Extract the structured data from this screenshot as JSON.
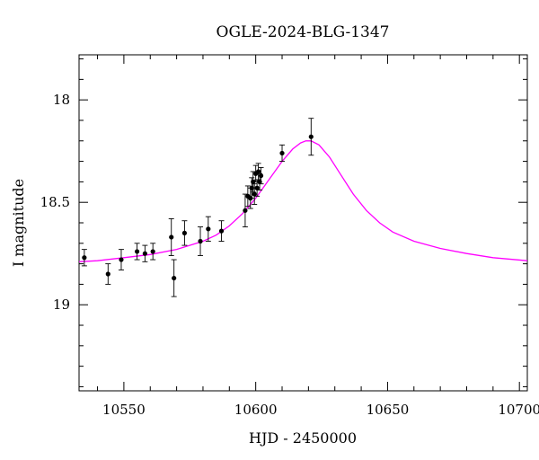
{
  "chart_data": {
    "type": "scatter",
    "title": "OGLE-2024-BLG-1347",
    "xlabel": "HJD - 2450000",
    "ylabel": "I magnitude",
    "xlim": [
      10533,
      10703
    ],
    "ylim": [
      19.42,
      17.78
    ],
    "y_inverted": true,
    "xticks": [
      10550,
      10600,
      10650,
      10700
    ],
    "yticks": [
      18,
      18.5,
      19
    ],
    "xtick_labels": [
      "10550",
      "10600",
      "10650",
      "10700"
    ],
    "ytick_labels": [
      "18",
      "18.5",
      "19"
    ],
    "grid": false,
    "legend": "none",
    "series": [
      {
        "type": "scatter",
        "x": [
          10535,
          10544,
          10549,
          10555,
          10558,
          10561,
          10568,
          10569,
          10573,
          10579,
          10582,
          10587,
          10596,
          10597,
          10598,
          10598.5,
          10599,
          10599.5,
          10600,
          10600.5,
          10601,
          10601.5,
          10602,
          10610,
          10621
        ],
        "y": [
          18.77,
          18.85,
          18.78,
          18.74,
          18.75,
          18.74,
          18.67,
          18.87,
          18.65,
          18.69,
          18.63,
          18.64,
          18.54,
          18.47,
          18.48,
          18.43,
          18.4,
          18.46,
          18.36,
          18.43,
          18.35,
          18.4,
          18.37,
          18.26,
          18.18
        ],
        "yerr": [
          0.04,
          0.05,
          0.05,
          0.04,
          0.04,
          0.04,
          0.09,
          0.09,
          0.06,
          0.07,
          0.06,
          0.05,
          0.08,
          0.05,
          0.05,
          0.05,
          0.05,
          0.05,
          0.04,
          0.04,
          0.04,
          0.04,
          0.04,
          0.04,
          0.09
        ],
        "color": "#000000"
      },
      {
        "type": "line",
        "x": [
          10533,
          10540,
          10550,
          10560,
          10570,
          10580,
          10585,
          10590,
          10595,
          10600,
          10605,
          10610,
          10614,
          10617,
          10619,
          10621,
          10624,
          10628,
          10632,
          10637,
          10642,
          10647,
          10652,
          10660,
          10670,
          10680,
          10690,
          10703
        ],
        "y": [
          18.79,
          18.785,
          18.77,
          18.755,
          18.73,
          18.69,
          18.66,
          18.615,
          18.555,
          18.48,
          18.39,
          18.3,
          18.24,
          18.21,
          18.2,
          18.2,
          18.22,
          18.28,
          18.36,
          18.46,
          18.54,
          18.6,
          18.645,
          18.69,
          18.725,
          18.75,
          18.77,
          18.785
        ],
        "color": "#ff00ff"
      }
    ]
  }
}
